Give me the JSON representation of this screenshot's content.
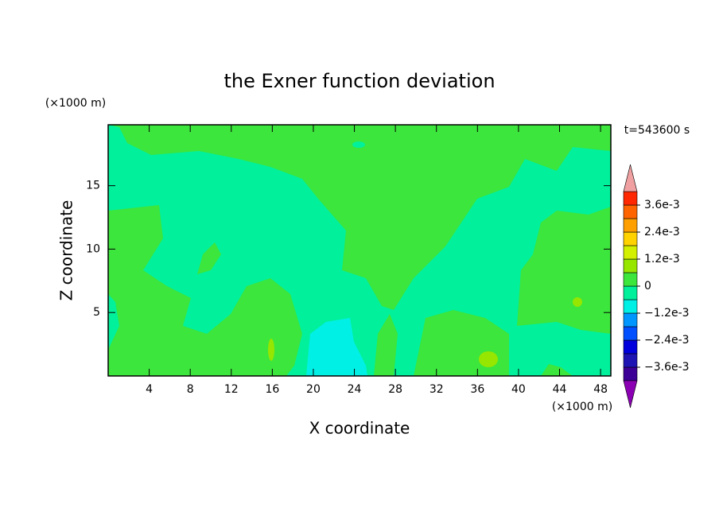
{
  "chart_data": {
    "type": "contour",
    "title": "the Exner function deviation",
    "time_label": "t=543600 s",
    "x_label": "X coordinate",
    "y_label": "Z coordinate",
    "x_unit": "(×1000 m)",
    "y_unit": "(×1000 m)",
    "xlim": [
      0,
      49
    ],
    "xticks": [
      4,
      8,
      12,
      16,
      20,
      24,
      28,
      32,
      36,
      40,
      44,
      48
    ],
    "ylim": [
      0,
      19.8
    ],
    "yticks": [
      5,
      10,
      15
    ],
    "colorbar": {
      "levels": [
        -0.0042,
        -0.0036,
        -0.003,
        -0.0024,
        -0.0018,
        -0.0012,
        -0.0006,
        0,
        0.0006,
        0.0012,
        0.0018,
        0.0024,
        0.003,
        0.0036,
        0.0042
      ],
      "colors": [
        "#3c0096",
        "#1e14b4",
        "#0000dc",
        "#0050ff",
        "#0096ff",
        "#00f0e6",
        "#00f09c",
        "#3ce63c",
        "#96e600",
        "#d2f000",
        "#ffd200",
        "#ffa000",
        "#ff6400",
        "#ff2800"
      ],
      "under_color": "#8c00b4",
      "over_color": "#f0a0a0",
      "ticks": [
        {
          "value": 0.0036,
          "label": "3.6e-3"
        },
        {
          "value": 0.0024,
          "label": "2.4e-3"
        },
        {
          "value": 0.0012,
          "label": "1.2e-3"
        },
        0,
        {
          "value": -0.0012,
          "label": "−1.2e-3"
        },
        {
          "value": -0.0024,
          "label": "−2.4e-3"
        },
        {
          "value": -0.0036,
          "label": "−3.6e-3"
        }
      ]
    }
  }
}
